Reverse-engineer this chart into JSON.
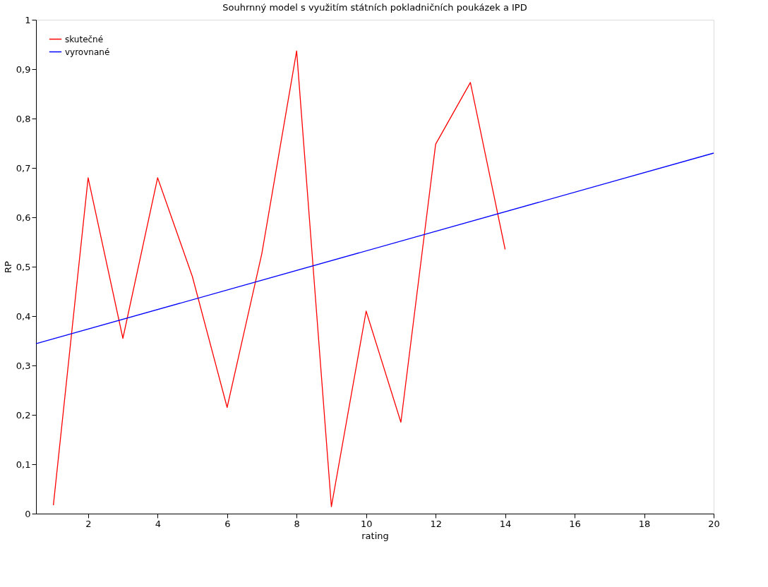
{
  "chart_data": {
    "type": "line",
    "title": "Souhrnný model s využitím státních pokladničních poukázek a IPD",
    "xlabel": "rating",
    "ylabel": "RP",
    "series": [
      {
        "name": "skutečné",
        "color": "#ff0000",
        "x": [
          1,
          2,
          3,
          4,
          5,
          6,
          7,
          8,
          9,
          10,
          11,
          12,
          13,
          14
        ],
        "values": [
          0.017,
          0.68,
          0.355,
          0.68,
          0.48,
          0.215,
          0.527,
          0.937,
          0.014,
          0.41,
          0.185,
          0.748,
          0.873,
          0.535
        ]
      },
      {
        "name": "vyrovnané",
        "color": "#0000ff",
        "x": [
          0.5,
          20
        ],
        "values": [
          0.344,
          0.73
        ]
      }
    ],
    "xlim": [
      0.5,
      20
    ],
    "xticks": [
      2,
      4,
      6,
      8,
      10,
      12,
      14,
      16,
      18,
      20
    ],
    "ylim": [
      0,
      1
    ],
    "yticks": [
      0,
      {
        "value": 0.1,
        "label": "0,1"
      },
      {
        "value": 0.2,
        "label": "0,2"
      },
      {
        "value": 0.3,
        "label": "0,3"
      },
      {
        "value": 0.4,
        "label": "0,4"
      },
      {
        "value": 0.5,
        "label": "0,5"
      },
      {
        "value": 0.6,
        "label": "0,6"
      },
      {
        "value": 0.7,
        "label": "0,7"
      },
      {
        "value": 0.8,
        "label": "0,8"
      },
      {
        "value": 0.9,
        "label": "0,9"
      },
      1
    ],
    "grid": false,
    "legend": "top left",
    "marker": "none",
    "line_style": "solid"
  }
}
